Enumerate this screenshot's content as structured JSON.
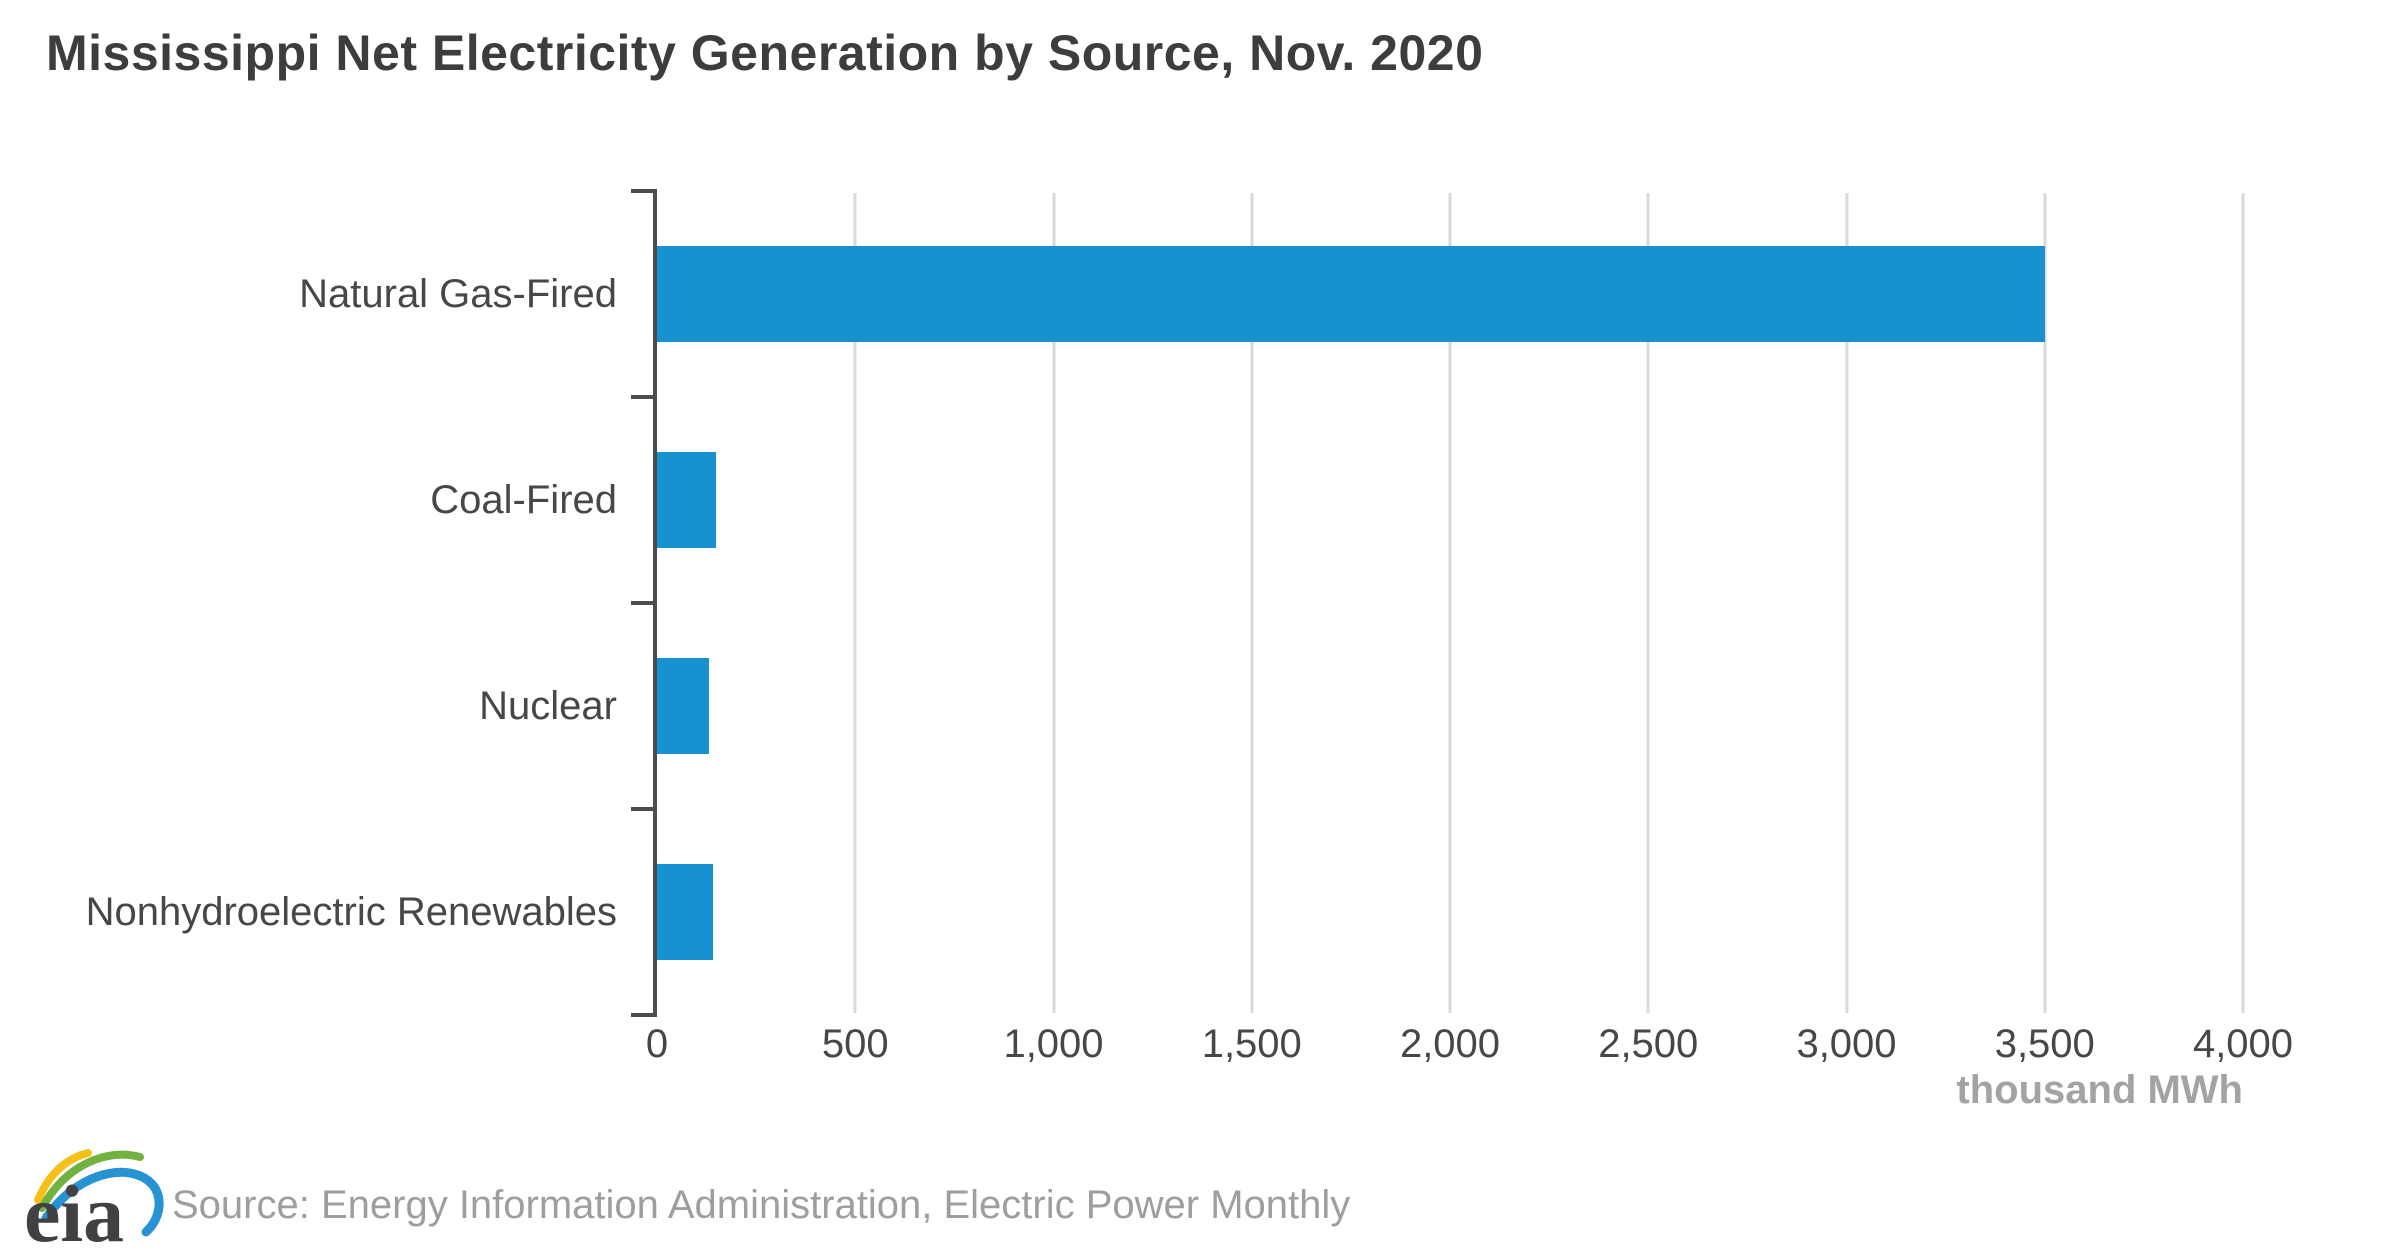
{
  "chart_data": {
    "type": "bar",
    "orientation": "horizontal",
    "title": "Mississippi Net Electricity Generation by Source, Nov. 2020",
    "categories": [
      "Natural Gas-Fired",
      "Coal-Fired",
      "Nuclear",
      "Nonhydroelectric Renewables"
    ],
    "values": [
      3500,
      150,
      130,
      140
    ],
    "xlabel": "thousand MWh",
    "ylabel": "",
    "xlim": [
      0,
      4000
    ],
    "x_tick_values": [
      0,
      500,
      1000,
      1500,
      2000,
      2500,
      3000,
      3500,
      4000
    ],
    "x_tick_labels": [
      "0",
      "500",
      "1,000",
      "1,500",
      "2,000",
      "2,500",
      "3,000",
      "3,500",
      "4,000"
    ],
    "grid": true,
    "legend": false,
    "bar_color": "#1792d1",
    "axis_color": "#4d4d4d",
    "gridline_color": "#d9d9d9"
  },
  "footer": {
    "logo_text": "eia",
    "logo_colors": {
      "yellow": "#f6c01a",
      "green": "#72b23e",
      "blue": "#2793d2",
      "text": "#414042"
    },
    "source": "Source: Energy Information Administration, Electric Power Monthly"
  }
}
